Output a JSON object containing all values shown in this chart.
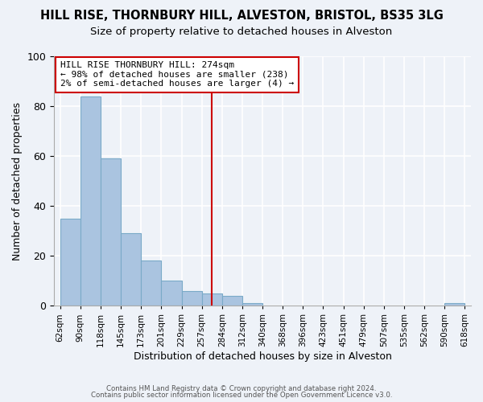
{
  "title": "HILL RISE, THORNBURY HILL, ALVESTON, BRISTOL, BS35 3LG",
  "subtitle": "Size of property relative to detached houses in Alveston",
  "xlabel": "Distribution of detached houses by size in Alveston",
  "ylabel": "Number of detached properties",
  "bar_values": [
    35,
    84,
    59,
    29,
    18,
    10,
    6,
    5,
    4,
    1,
    0,
    0,
    0,
    0,
    0,
    0,
    0,
    0,
    0,
    1
  ],
  "categories": [
    "62sqm",
    "90sqm",
    "118sqm",
    "145sqm",
    "173sqm",
    "201sqm",
    "229sqm",
    "257sqm",
    "284sqm",
    "312sqm",
    "340sqm",
    "368sqm",
    "396sqm",
    "423sqm",
    "451sqm",
    "479sqm",
    "507sqm",
    "535sqm",
    "562sqm",
    "590sqm",
    "618sqm"
  ],
  "bar_color": "#aac4e0",
  "bar_edge_color": "#7aaac8",
  "vline_x": 7.5,
  "vline_color": "#cc0000",
  "annotation_line1": "HILL RISE THORNBURY HILL: 274sqm",
  "annotation_line2": "← 98% of detached houses are smaller (238)",
  "annotation_line3": "2% of semi-detached houses are larger (4) →",
  "ylim": [
    0,
    100
  ],
  "yticks": [
    0,
    20,
    40,
    60,
    80,
    100
  ],
  "background_color": "#eef2f8",
  "grid_color": "#ffffff",
  "footer_line1": "Contains HM Land Registry data © Crown copyright and database right 2024.",
  "footer_line2": "Contains public sector information licensed under the Open Government Licence v3.0.",
  "title_fontsize": 10.5,
  "subtitle_fontsize": 9.5
}
